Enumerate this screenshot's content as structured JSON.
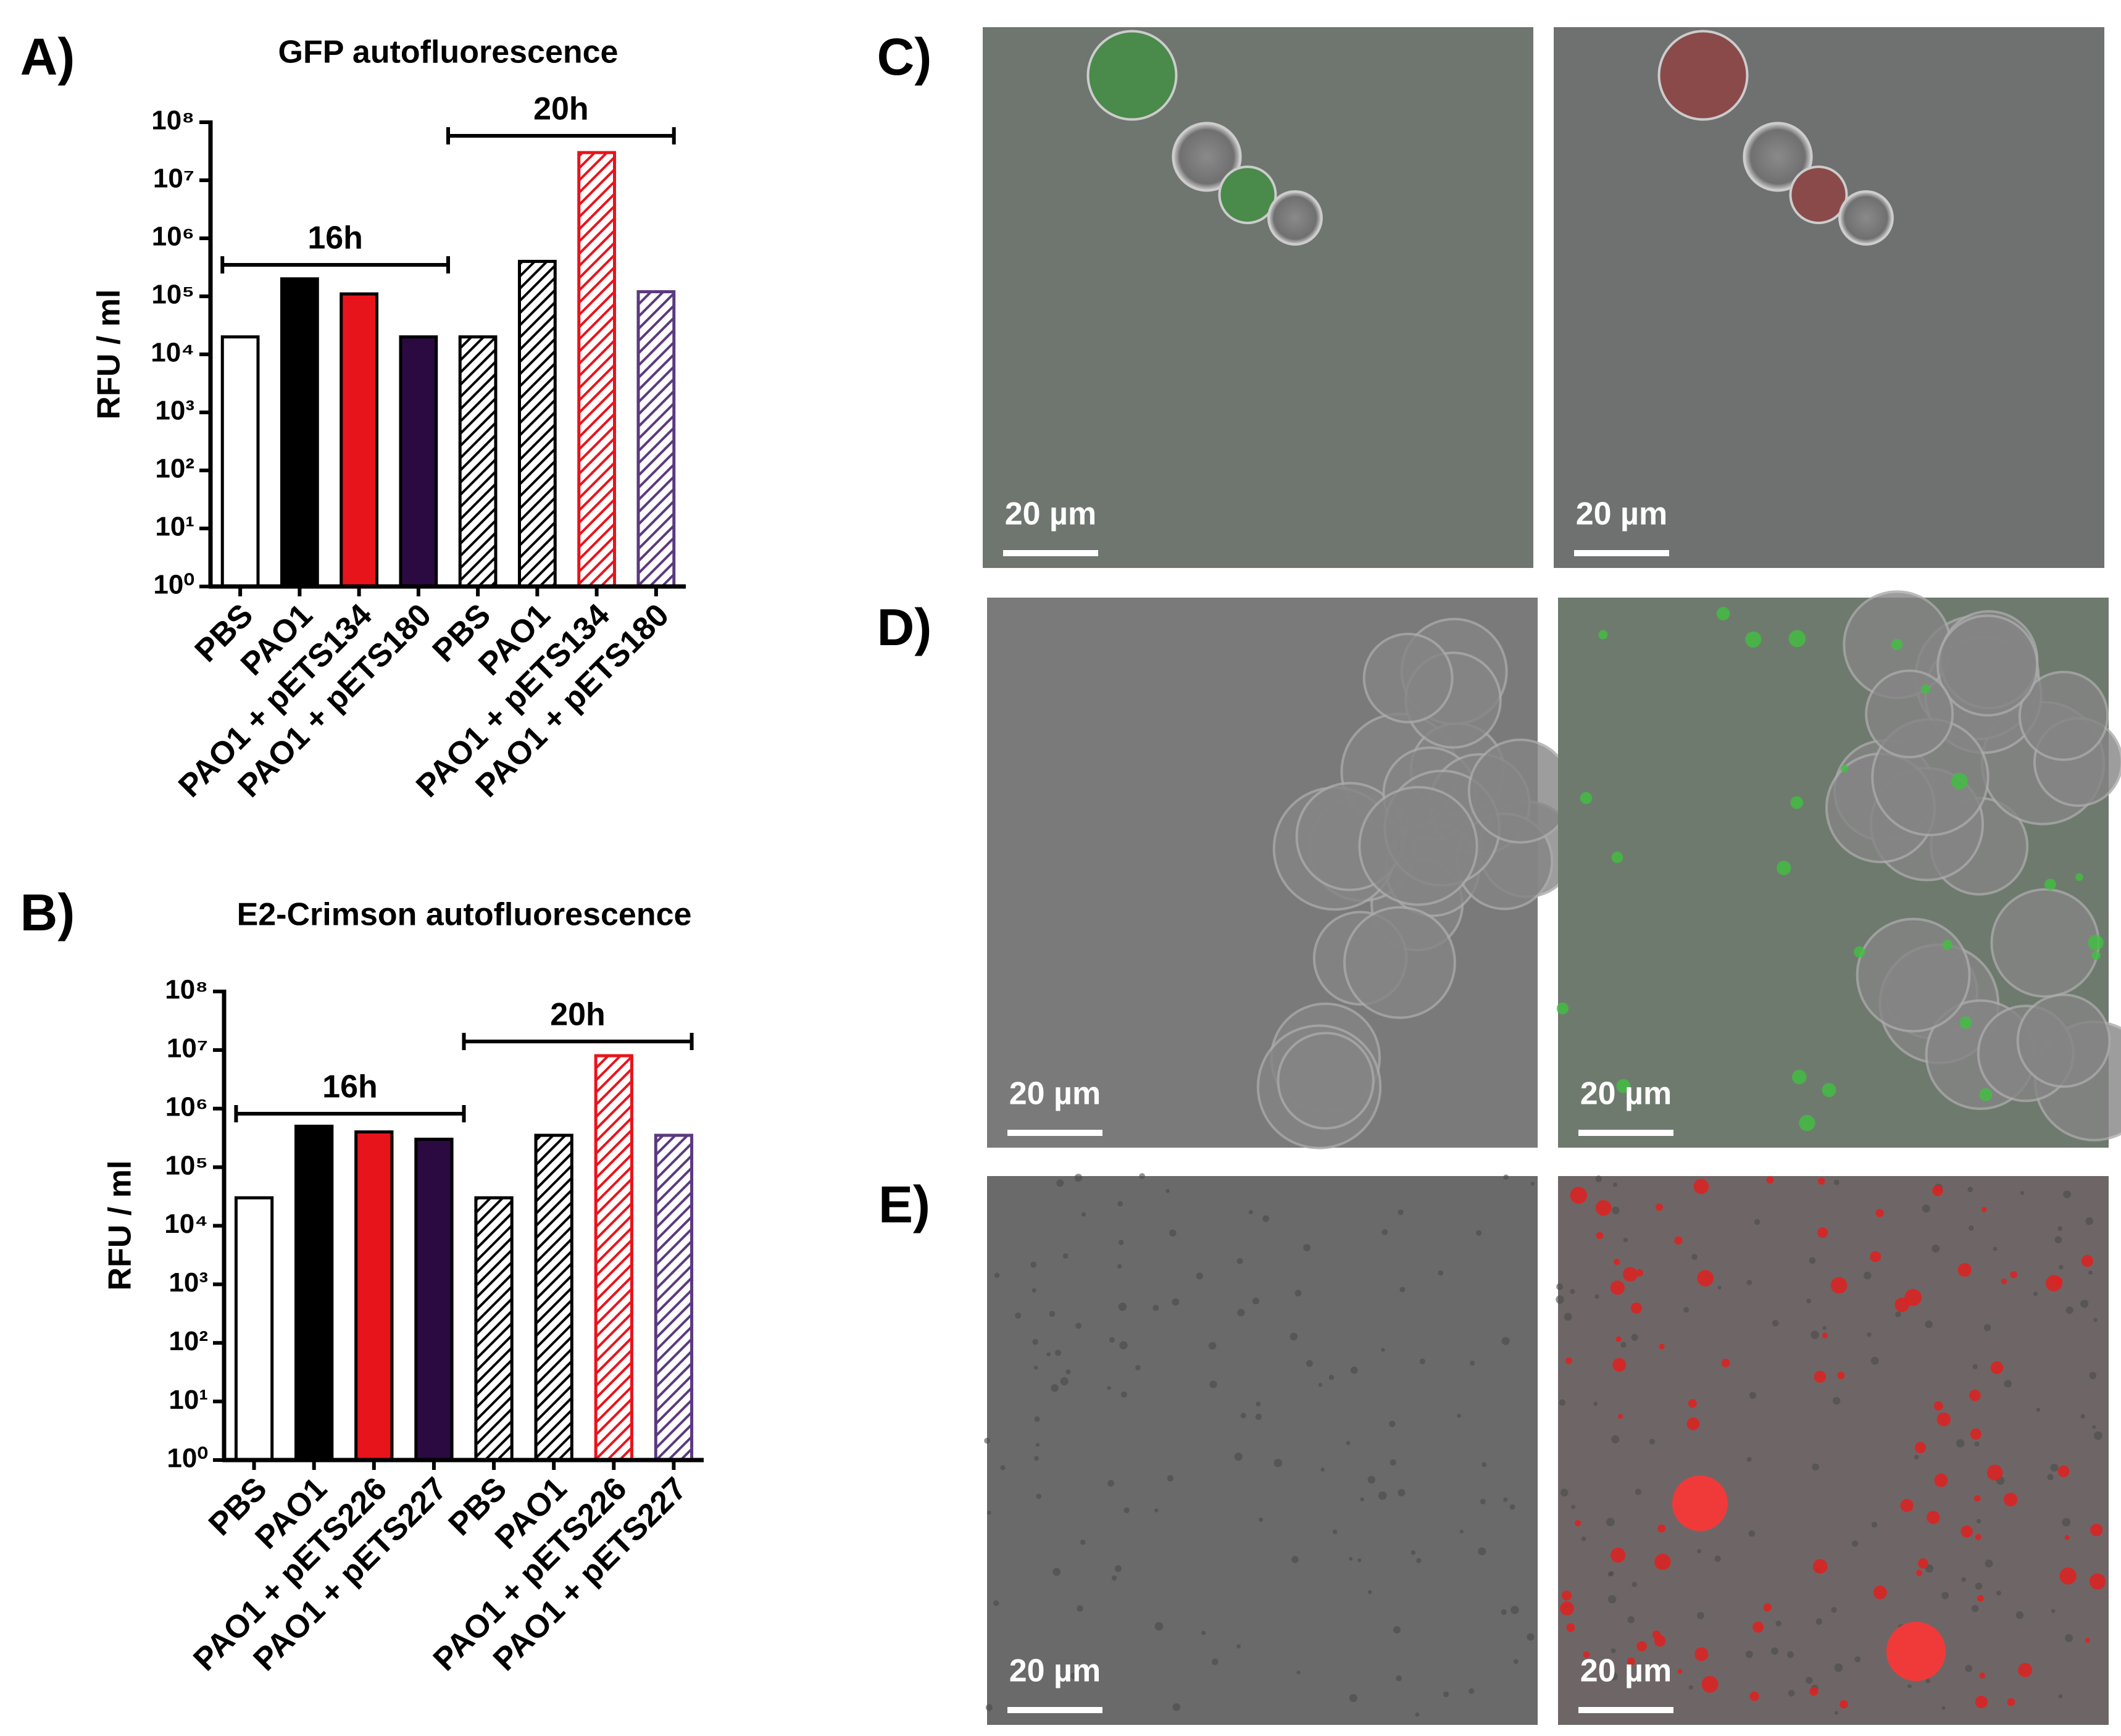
{
  "chart_data": [
    {
      "type": "bar",
      "panel_label": "A)",
      "title": "GFP autofluorescence",
      "ylabel": "RFU / ml",
      "categories": [
        "PBS",
        "PAO1",
        "PAO1 + pETS134",
        "PAO1 + pETS180",
        "PBS",
        "PAO1",
        "PAO1 + pETS134",
        "PAO1 + pETS180"
      ],
      "values": [
        20000,
        200000,
        110000,
        20000,
        20000,
        400000,
        30000000,
        120000
      ],
      "colors": [
        "#ffffff",
        "#000000",
        "#e8141c",
        "#2a0a40",
        "#000000",
        "#000000",
        "#e8141c",
        "#5a3a80"
      ],
      "hatched": [
        false,
        false,
        false,
        false,
        true,
        true,
        true,
        true
      ],
      "annotations": [
        "16h",
        "20h"
      ],
      "log_scale": true,
      "ylim": [
        1,
        100000000
      ],
      "yticks": [
        {
          "value": 1,
          "label": "10⁰"
        },
        {
          "value": 10,
          "label": "10¹"
        },
        {
          "value": 100,
          "label": "10²"
        },
        {
          "value": 1000,
          "label": "10³"
        },
        {
          "value": 10000,
          "label": "10⁴"
        },
        {
          "value": 100000,
          "label": "10⁵"
        },
        {
          "value": 1000000,
          "label": "10⁶"
        },
        {
          "value": 10000000,
          "label": "10⁷"
        },
        {
          "value": 100000000,
          "label": "10⁸"
        }
      ]
    },
    {
      "type": "bar",
      "panel_label": "B)",
      "title": "E2-Crimson autofluorescence",
      "ylabel": "RFU / ml",
      "categories": [
        "PBS",
        "PAO1",
        "PAO1 + pETS226",
        "PAO1 + pETS227",
        "PBS",
        "PAO1",
        "PAO1 + pETS226",
        "PAO1 + pETS227"
      ],
      "values": [
        30000,
        500000,
        400000,
        300000,
        30000,
        350000,
        8000000,
        350000
      ],
      "colors": [
        "#ffffff",
        "#000000",
        "#e8141c",
        "#2a0a40",
        "#000000",
        "#000000",
        "#e8141c",
        "#5a3a80"
      ],
      "hatched": [
        false,
        false,
        false,
        false,
        true,
        true,
        true,
        true
      ],
      "annotations": [
        "16h",
        "20h"
      ],
      "log_scale": true,
      "ylim": [
        1,
        100000000
      ],
      "yticks": [
        {
          "value": 1,
          "label": "10⁰"
        },
        {
          "value": 10,
          "label": "10¹"
        },
        {
          "value": 100,
          "label": "10²"
        },
        {
          "value": 1000,
          "label": "10³"
        },
        {
          "value": 10000,
          "label": "10⁴"
        },
        {
          "value": 100000,
          "label": "10⁵"
        },
        {
          "value": 1000000,
          "label": "10⁶"
        },
        {
          "value": 10000000,
          "label": "10⁷"
        },
        {
          "value": 100000000,
          "label": "10⁸"
        }
      ]
    }
  ],
  "image_panels": [
    {
      "label": "C)",
      "scale_bars": [
        "20 µm",
        "20 µm"
      ]
    },
    {
      "label": "D)",
      "scale_bars": [
        "20 µm",
        "20 µm"
      ]
    },
    {
      "label": "E)",
      "scale_bars": [
        "20 µm",
        "20 µm"
      ]
    }
  ]
}
